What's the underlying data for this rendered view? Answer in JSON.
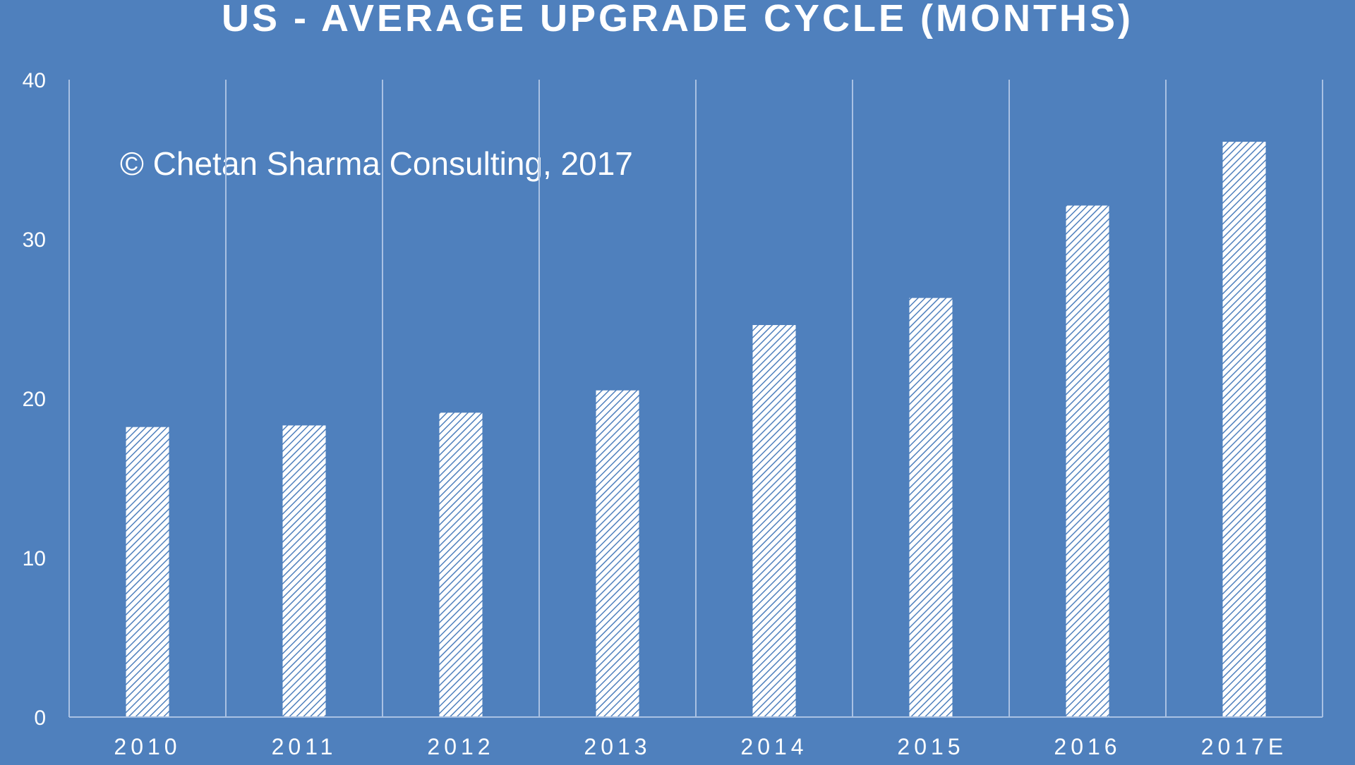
{
  "chart_data": {
    "type": "bar",
    "title": "US - AVERAGE UPGRADE CYCLE (MONTHS)",
    "xlabel": "",
    "ylabel": "",
    "categories": [
      "2010",
      "2011",
      "2012",
      "2013",
      "2014",
      "2015",
      "2016",
      "2017E"
    ],
    "values": [
      18.2,
      18.3,
      19.1,
      20.5,
      24.6,
      26.3,
      32.1,
      36.1
    ],
    "ylim": [
      0,
      40
    ],
    "yticks": [
      0,
      10,
      20,
      30,
      40
    ],
    "grid": "vertical",
    "legend": "none",
    "bar_fill": "diagonal hatch",
    "annotation": "© Chetan Sharma Consulting, 2017"
  },
  "colors": {
    "background": "#4f80bd",
    "bar": "#ffffff",
    "gridline": "#a9c1e3",
    "text": "#ffffff"
  }
}
